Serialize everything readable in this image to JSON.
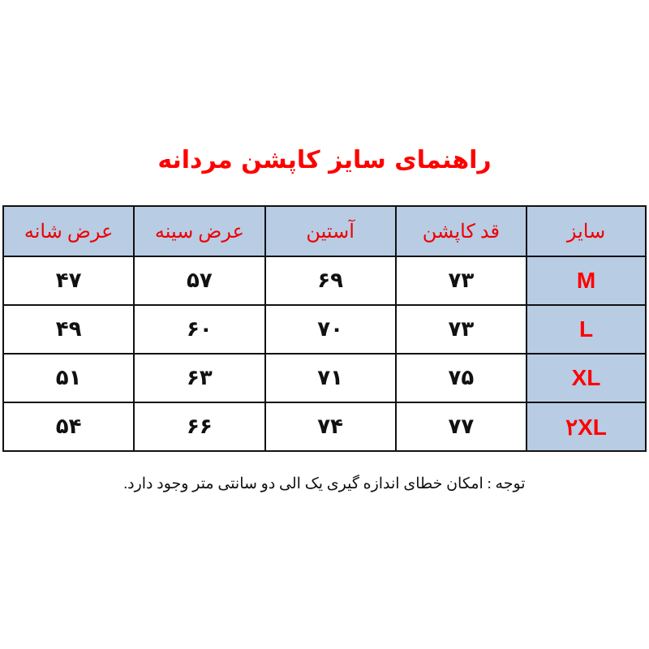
{
  "title": "راهنمای سایز کاپشن مردانه",
  "table": {
    "headers": [
      "سایز",
      "قد کاپشن",
      "آستین",
      "عرض سینه",
      "عرض شانه"
    ],
    "rows": [
      [
        "M",
        "۷۳",
        "۶۹",
        "۵۷",
        "۴۷"
      ],
      [
        "L",
        "۷۳",
        "۷۰",
        "۶۰",
        "۴۹"
      ],
      [
        "XL",
        "۷۵",
        "۷۱",
        "۶۳",
        "۵۱"
      ],
      [
        "۲XL",
        "۷۷",
        "۷۴",
        "۶۶",
        "۵۴"
      ]
    ]
  },
  "note": "توجه : امکان خطای اندازه گیری یک الی دو سانتی متر وجود دارد.",
  "colors": {
    "title": "#ff0000",
    "header_bg": "#b8cce4",
    "size_text": "#ff0000"
  }
}
